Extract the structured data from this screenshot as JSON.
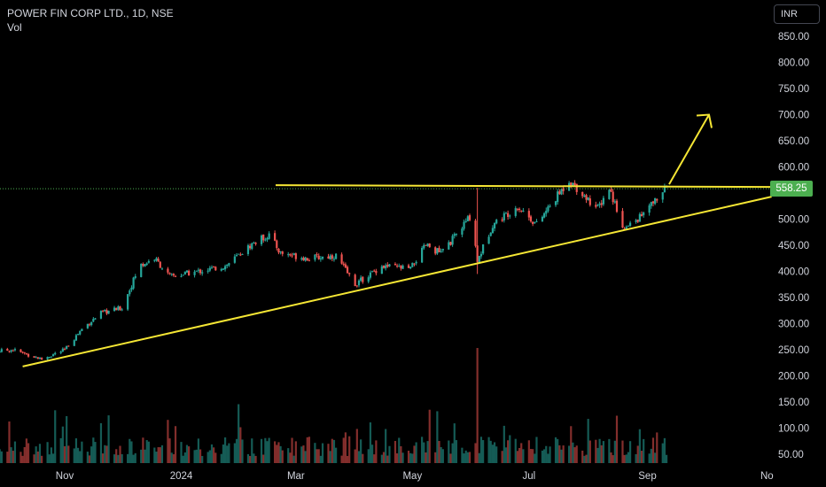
{
  "header": {
    "symbol_line": "POWER FIN CORP LTD., 1D, NSE",
    "indicator": "Vol"
  },
  "currency_button": "INR",
  "last_price_label": "558.25",
  "colors": {
    "background": "#000000",
    "up": "#26a69a",
    "down": "#ef5350",
    "trendline": "#f5e634",
    "last_price": "#4caf50",
    "axis_text": "#d1d4dc"
  },
  "chart_data": {
    "type": "candlestick",
    "title": "POWER FIN CORP LTD., 1D, NSE",
    "x_tick_labels": [
      "Nov",
      "2024",
      "Mar",
      "May",
      "Jul",
      "Sep",
      "No"
    ],
    "y_tick_labels": [
      "50.00",
      "100.00",
      "150.00",
      "200.00",
      "250.00",
      "300.00",
      "350.00",
      "400.00",
      "450.00",
      "500.00",
      "550.00",
      "600.00",
      "650.00",
      "700.00",
      "750.00",
      "800.00",
      "850.00"
    ],
    "ylim": [
      40,
      870
    ],
    "last_price": 558.25,
    "price_path": [
      {
        "date": "2023-09-20",
        "close": 245
      },
      {
        "date": "2023-10-05",
        "close": 250
      },
      {
        "date": "2023-10-20",
        "close": 232
      },
      {
        "date": "2023-11-01",
        "close": 250
      },
      {
        "date": "2023-11-10",
        "close": 290
      },
      {
        "date": "2023-11-20",
        "close": 320
      },
      {
        "date": "2023-12-01",
        "close": 330
      },
      {
        "date": "2023-12-10",
        "close": 410
      },
      {
        "date": "2023-12-18",
        "close": 425
      },
      {
        "date": "2023-12-26",
        "close": 390
      },
      {
        "date": "2024-01-10",
        "close": 400
      },
      {
        "date": "2024-01-24",
        "close": 410
      },
      {
        "date": "2024-02-08",
        "close": 455
      },
      {
        "date": "2024-02-16",
        "close": 470
      },
      {
        "date": "2024-02-22",
        "close": 435
      },
      {
        "date": "2024-03-08",
        "close": 425
      },
      {
        "date": "2024-03-22",
        "close": 430
      },
      {
        "date": "2024-04-01",
        "close": 375
      },
      {
        "date": "2024-04-15",
        "close": 410
      },
      {
        "date": "2024-04-30",
        "close": 405
      },
      {
        "date": "2024-05-08",
        "close": 450
      },
      {
        "date": "2024-05-16",
        "close": 435
      },
      {
        "date": "2024-05-24",
        "close": 470
      },
      {
        "date": "2024-06-01",
        "close": 510
      },
      {
        "date": "2024-06-04",
        "close": 420
      },
      {
        "date": "2024-06-12",
        "close": 490
      },
      {
        "date": "2024-06-25",
        "close": 525
      },
      {
        "date": "2024-07-05",
        "close": 490
      },
      {
        "date": "2024-07-15",
        "close": 540
      },
      {
        "date": "2024-07-22",
        "close": 575
      },
      {
        "date": "2024-07-30",
        "close": 545
      },
      {
        "date": "2024-08-06",
        "close": 520
      },
      {
        "date": "2024-08-12",
        "close": 560
      },
      {
        "date": "2024-08-20",
        "close": 480
      },
      {
        "date": "2024-08-30",
        "close": 510
      },
      {
        "date": "2024-09-06",
        "close": 540
      },
      {
        "date": "2024-09-11",
        "close": 558.25
      }
    ],
    "volume_spikes": [
      {
        "date": "2024-06-04",
        "note": "largest volume bar"
      }
    ],
    "annotations": {
      "resistance_line": {
        "price": 565
      },
      "rising_trendline": {
        "from": {
          "date": "2023-10-10",
          "price": 218
        },
        "to": {
          "date": "2024-11-05",
          "price": 543
        }
      },
      "breakout_arrow": {
        "target_price": 700
      }
    },
    "grid": false,
    "legend": "none"
  }
}
